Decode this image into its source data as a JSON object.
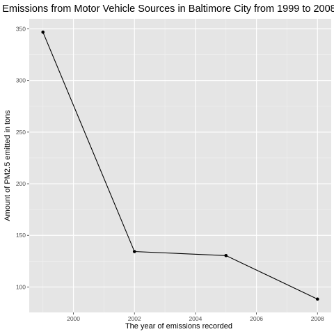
{
  "chart_data": {
    "type": "line",
    "title": "Emissions from Motor Vehicle Sources in Baltimore City from 1999 to 2008",
    "xlabel": "The year of emissions recorded",
    "ylabel": "Amount of PM2.5 emitted in tons",
    "x": [
      1999,
      2002,
      2005,
      2008
    ],
    "y": [
      346.82,
      134.31,
      130.43,
      88.28
    ],
    "xlim": [
      1998.55,
      2008.45
    ],
    "ylim": [
      75.36,
      359.75
    ],
    "xticks": [
      2000,
      2002,
      2004,
      2006,
      2008
    ],
    "yticks": [
      100,
      150,
      200,
      250,
      300,
      350
    ],
    "grid": true,
    "panel_color": "#e5e5e5",
    "line_color": "#000000"
  }
}
